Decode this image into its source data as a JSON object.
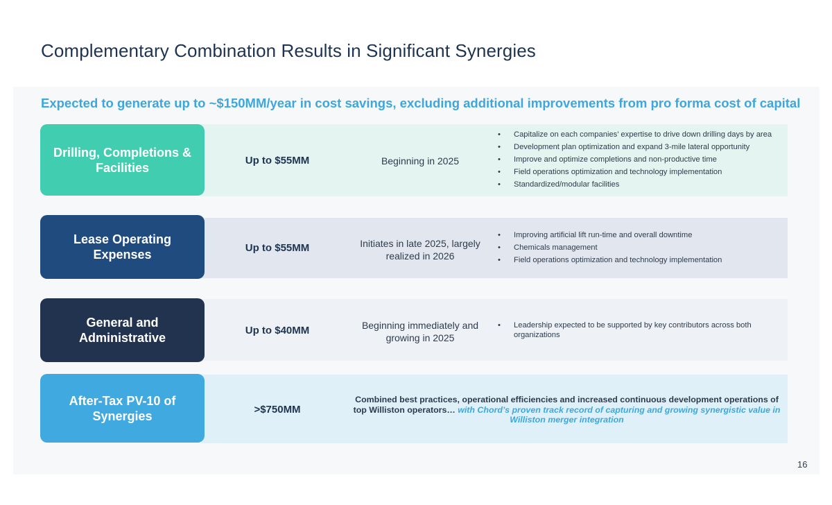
{
  "page": {
    "title": "Complementary Combination Results in Significant Synergies",
    "subtitle": "Expected to generate up to ~$150MM/year in cost savings, excluding additional improvements from pro forma cost of capital",
    "page_number": "16"
  },
  "colors": {
    "title": "#1d3350",
    "accent": "#3da7dd",
    "drilling": "#41cdb0",
    "loe": "#1f4b7f",
    "ga": "#223350",
    "pv10": "#3fa9e0"
  },
  "rows": [
    {
      "category": "Drilling, Completions & Facilities",
      "amount": "Up to $55MM",
      "timing": "Beginning in 2025",
      "bullets": [
        "Capitalize on each companies’ expertise to drive down drilling days by area",
        "Development plan optimization and expand 3-mile lateral opportunity",
        "Improve and optimize completions and non-productive time",
        "Field operations optimization and technology implementation",
        "Standardized/modular facilities"
      ]
    },
    {
      "category": "Lease Operating Expenses",
      "amount": "Up to $55MM",
      "timing": "Initiates in late 2025, largely realized in 2026",
      "bullets": [
        "Improving artificial lift run-time and overall downtime",
        "Chemicals management",
        "Field operations optimization and technology implementation"
      ]
    },
    {
      "category": "General and Administrative",
      "amount": "Up to $40MM",
      "timing": "Beginning immediately and growing in 2025",
      "bullets": [
        "Leadership expected to be supported by key contributors across both organizations"
      ]
    },
    {
      "category": "After-Tax PV-10 of Synergies",
      "amount": ">$750MM",
      "note_main": "Combined best practices, operational efficiencies and increased continuous development operations of top Williston operators…",
      "note_accent": "with Chord’s proven track record of capturing and growing synergistic value in Williston merger integration"
    }
  ],
  "bullet_glyph": "•"
}
